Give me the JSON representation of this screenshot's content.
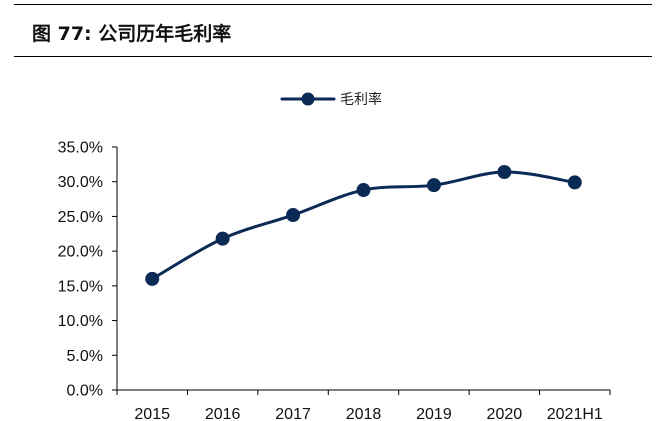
{
  "figure": {
    "title": "图 77:  公司历年毛利率"
  },
  "colors": {
    "series": "#0b2a55",
    "axis": "#000000",
    "rule": "#000000"
  },
  "chart_data": {
    "type": "line",
    "title": "",
    "xlabel": "",
    "ylabel": "",
    "categories": [
      "2015",
      "2016",
      "2017",
      "2018",
      "2019",
      "2020",
      "2021H1"
    ],
    "series": [
      {
        "name": "毛利率",
        "values": [
          16.0,
          21.8,
          25.2,
          28.8,
          29.5,
          31.4,
          29.9
        ]
      }
    ],
    "ylim": [
      0,
      35
    ],
    "yticks": [
      0,
      5,
      10,
      15,
      20,
      25,
      30,
      35
    ],
    "ytick_labels": [
      "0.0%",
      "5.0%",
      "10.0%",
      "15.0%",
      "20.0%",
      "25.0%",
      "30.0%",
      "35.0%"
    ],
    "grid": false,
    "legend_position": "top-center",
    "marker": "circle"
  }
}
